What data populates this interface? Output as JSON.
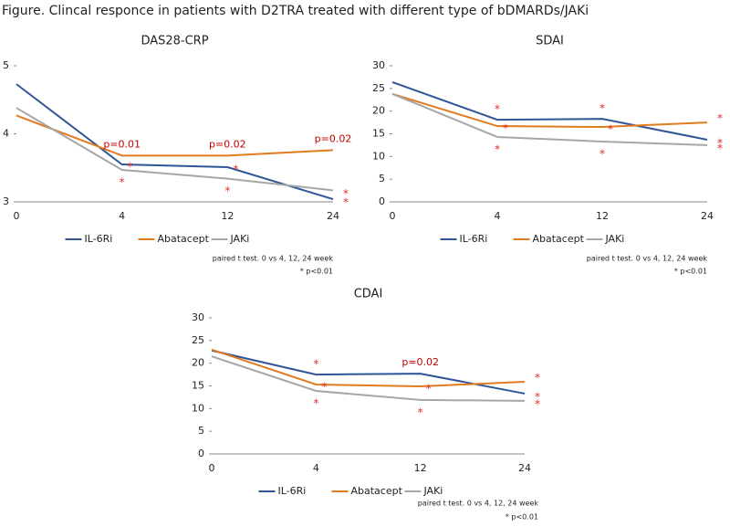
{
  "title": "Figure. Clincal responce in patients with D2TRA treated with different type of bDMARDs/JAKi",
  "chart_data": [
    {
      "type": "line",
      "title": "DAS28-CRP",
      "categories": [
        "0",
        "4",
        "12",
        "24"
      ],
      "ylim": [
        3,
        5
      ],
      "yticks": [
        3,
        4,
        5
      ],
      "series": [
        {
          "name": "IL-6Ri",
          "color": "#2f5597",
          "values": [
            4.73,
            3.55,
            3.51,
            3.04
          ],
          "significance": [
            null,
            "*",
            "*",
            "*"
          ]
        },
        {
          "name": "Abatacept",
          "color": "#e07b20",
          "values": [
            4.27,
            3.68,
            3.68,
            3.76
          ],
          "point_labels": [
            null,
            "p=0.01",
            "p=0.02",
            "p=0.02"
          ]
        },
        {
          "name": "JAKi",
          "color": "#a6a6a6",
          "values": [
            4.38,
            3.47,
            3.34,
            3.17
          ],
          "significance": [
            null,
            "*",
            "*",
            "*"
          ]
        }
      ],
      "notes": [
        "paired t test. 0 vs 4, 12, 24 week",
        "* p<0.01"
      ]
    },
    {
      "type": "line",
      "title": "SDAI",
      "categories": [
        "0",
        "4",
        "12",
        "24"
      ],
      "ylim": [
        0,
        30
      ],
      "yticks": [
        0,
        5,
        10,
        15,
        20,
        25,
        30
      ],
      "series": [
        {
          "name": "IL-6Ri",
          "color": "#2f5597",
          "values": [
            26.4,
            18.1,
            18.3,
            13.7
          ],
          "significance": [
            null,
            "*",
            "*",
            "*"
          ]
        },
        {
          "name": "Abatacept",
          "color": "#e07b20",
          "values": [
            23.8,
            16.7,
            16.5,
            17.5
          ],
          "significance": [
            null,
            "*",
            "*",
            "*"
          ]
        },
        {
          "name": "JAKi",
          "color": "#a6a6a6",
          "values": [
            23.8,
            14.3,
            13.3,
            12.5
          ],
          "significance": [
            null,
            "*",
            "*",
            "*"
          ]
        }
      ],
      "notes": [
        "paired t test. 0 vs 4, 12, 24 week",
        "* p<0.01"
      ]
    },
    {
      "type": "line",
      "title": "CDAI",
      "categories": [
        "0",
        "4",
        "12",
        "24"
      ],
      "ylim": [
        0,
        30
      ],
      "yticks": [
        0,
        5,
        10,
        15,
        20,
        25,
        30
      ],
      "series": [
        {
          "name": "IL-6Ri",
          "color": "#2f5597",
          "values": [
            22.8,
            17.5,
            17.7,
            13.3
          ],
          "significance": [
            null,
            "*",
            null,
            "*"
          ],
          "point_labels": [
            null,
            null,
            "p=0.02",
            null
          ]
        },
        {
          "name": "Abatacept",
          "color": "#e07b20",
          "values": [
            23.0,
            15.3,
            14.9,
            15.9
          ],
          "significance": [
            null,
            "*",
            "*",
            "*"
          ]
        },
        {
          "name": "JAKi",
          "color": "#a6a6a6",
          "values": [
            21.5,
            13.9,
            11.9,
            11.7
          ],
          "significance": [
            null,
            "*",
            "*",
            "*"
          ]
        }
      ],
      "notes": [
        "paired t test. 0 vs 4, 12, 24 week",
        "* p<0.01"
      ]
    }
  ]
}
